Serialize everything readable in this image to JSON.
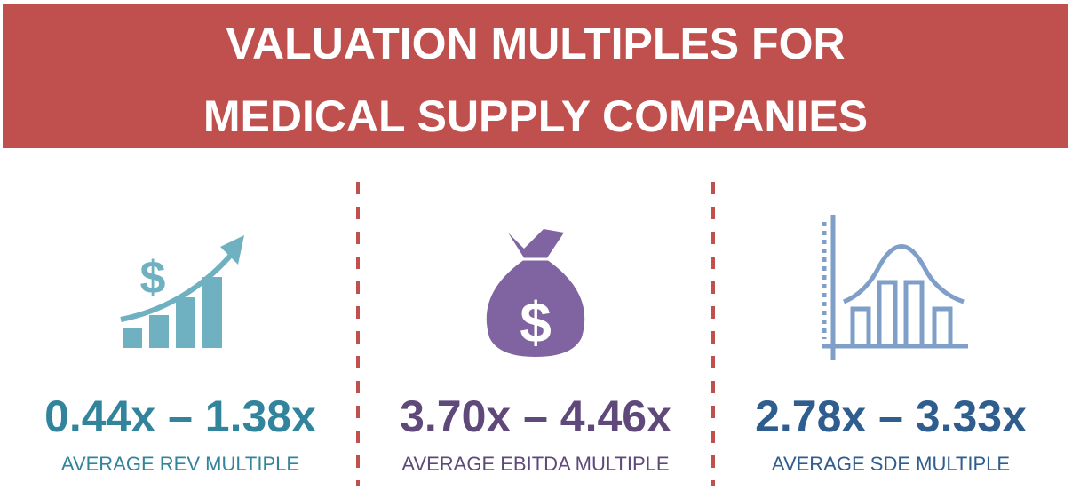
{
  "header": {
    "title_lines": [
      "VALUATION MULTIPLES FOR",
      "MEDICAL SUPPLY COMPANIES"
    ]
  },
  "panels": [
    {
      "value": "0.44x – 1.38x",
      "label": "AVERAGE REV MULTIPLE"
    },
    {
      "value": "3.70x – 4.46x",
      "label": "AVERAGE EBITDA MULTIPLE"
    },
    {
      "value": "2.78x – 3.33x",
      "label": "AVERAGE SDE MULTIPLE"
    }
  ]
}
